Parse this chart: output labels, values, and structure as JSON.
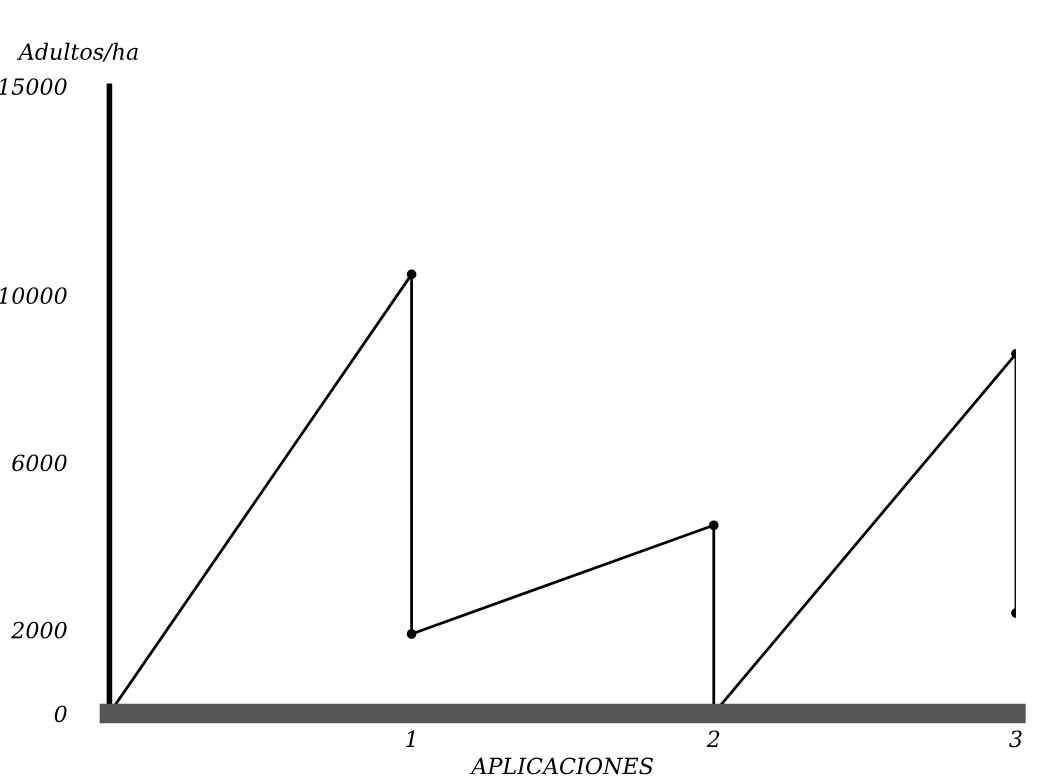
{
  "chart_data": {
    "type": "line",
    "ylabel": "Adultos/ha",
    "xlabel": "APLICACIONES",
    "x": [
      0,
      1,
      1,
      2,
      2,
      3,
      3
    ],
    "series": [
      {
        "color": "#000000",
        "values": [
          0,
          10500,
          1900,
          4500,
          0,
          8600,
          2400
        ]
      }
    ],
    "xlim": [
      0,
      3
    ],
    "xticks": [
      {
        "value": 0,
        "label": null
      },
      1,
      2,
      3
    ],
    "ylim": [
      0,
      15000
    ],
    "yticks": [
      0,
      2000,
      6000,
      10000,
      15000
    ],
    "grid": false,
    "legend": false,
    "marker": "circle",
    "line_style": "solid"
  }
}
